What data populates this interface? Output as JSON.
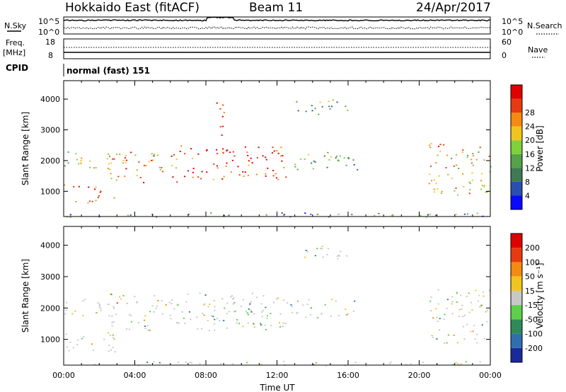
{
  "header": {
    "radar": "Hokkaido East (fitACF)",
    "beam": "Beam 11",
    "date": "24/Apr/2017"
  },
  "aux_panels": {
    "nsky_label": "N.Sky",
    "nsky_ticks": [
      "10^5",
      "10^0"
    ],
    "nsearch_label": "N.Search",
    "freq_label_line1": "Freq.",
    "freq_label_line2": "[MHz]",
    "freq_ticks": [
      "18",
      "8"
    ],
    "nave_label": "Nave",
    "nave_ticks": [
      "60",
      "0"
    ],
    "cpid_label": "CPID",
    "cpid_value": "normal (fast) 151"
  },
  "chart_data": [
    {
      "type": "heatmap",
      "panel": "power",
      "xlabel": "Time UT",
      "ylabel": "Slant Range [km]",
      "x_ticks": [
        "00:00",
        "04:00",
        "08:00",
        "12:00",
        "16:00",
        "20:00",
        "00:00"
      ],
      "xlim_hours": [
        0,
        24
      ],
      "ylim_km": [
        180,
        4600
      ],
      "y_ticks": [
        1000,
        2000,
        3000,
        4000
      ],
      "colorbar_label": "Power [dB]",
      "colorbar_ticks": [
        4,
        8,
        12,
        16,
        20,
        24,
        28
      ],
      "colorbar_colors": [
        "#0a0aff",
        "#2a4fb0",
        "#3f7a55",
        "#55a24a",
        "#7fd03a",
        "#f2c41e",
        "#f58a10",
        "#e83a10",
        "#e00000"
      ],
      "echo_regions": [
        {
          "t0": 0.0,
          "t1": 2.5,
          "r0": 950,
          "r1": 1250,
          "intensity": 0.85
        },
        {
          "t0": 0.5,
          "t1": 3.0,
          "r0": 600,
          "r1": 900,
          "intensity": 0.65
        },
        {
          "t0": 0.0,
          "t1": 2.8,
          "r0": 1700,
          "r1": 2300,
          "intensity": 0.55
        },
        {
          "t0": 2.5,
          "t1": 6.5,
          "r0": 1300,
          "r1": 2300,
          "intensity": 0.7
        },
        {
          "t0": 6.5,
          "t1": 12.5,
          "r0": 1400,
          "r1": 2500,
          "intensity": 0.9
        },
        {
          "t0": 8.5,
          "t1": 9.0,
          "r0": 2200,
          "r1": 4200,
          "intensity": 0.85
        },
        {
          "t0": 12.5,
          "t1": 16.5,
          "r0": 1700,
          "r1": 2300,
          "intensity": 0.45
        },
        {
          "t0": 13.0,
          "t1": 16.0,
          "r0": 3500,
          "r1": 4000,
          "intensity": 0.35
        },
        {
          "t0": 20.5,
          "t1": 24.0,
          "r0": 900,
          "r1": 2600,
          "intensity": 0.65
        },
        {
          "t0": 0.0,
          "t1": 24.0,
          "r0": 180,
          "r1": 320,
          "intensity": 0.35
        }
      ]
    },
    {
      "type": "heatmap",
      "panel": "velocity",
      "xlabel": "Time UT",
      "ylabel": "Slant Range [km]",
      "x_ticks": [
        "00:00",
        "04:00",
        "08:00",
        "12:00",
        "16:00",
        "20:00",
        "00:00"
      ],
      "xlim_hours": [
        0,
        24
      ],
      "ylim_km": [
        180,
        4600
      ],
      "y_ticks": [
        1000,
        2000,
        3000,
        4000
      ],
      "colorbar_label": "Velocity [m s⁻¹]",
      "colorbar_ticks": [
        200,
        100,
        50,
        15,
        -15,
        -50,
        -100,
        -200
      ],
      "colorbar_colors": [
        "#1a2a9a",
        "#2f6fb0",
        "#2e8b57",
        "#5cd04a",
        "#c8c8c8",
        "#f2c41e",
        "#f58a10",
        "#e83a10",
        "#e00000"
      ],
      "echo_regions": [
        {
          "t0": 0.0,
          "t1": 3.0,
          "r0": 600,
          "r1": 1250,
          "intensity": 0.5
        },
        {
          "t0": 0.0,
          "t1": 2.8,
          "r0": 1700,
          "r1": 2300,
          "intensity": 0.5
        },
        {
          "t0": 2.5,
          "t1": 12.5,
          "r0": 1300,
          "r1": 2500,
          "intensity": 0.5
        },
        {
          "t0": 9.5,
          "t1": 10.5,
          "r0": 1400,
          "r1": 2000,
          "intensity": 0.5
        },
        {
          "t0": 12.5,
          "t1": 16.5,
          "r0": 1700,
          "r1": 2300,
          "intensity": 0.5
        },
        {
          "t0": 13.0,
          "t1": 16.0,
          "r0": 3500,
          "r1": 4000,
          "intensity": 0.5
        },
        {
          "t0": 20.5,
          "t1": 24.0,
          "r0": 900,
          "r1": 2600,
          "intensity": 0.5
        },
        {
          "t0": 0.0,
          "t1": 24.0,
          "r0": 180,
          "r1": 320,
          "intensity": 0.5
        }
      ]
    }
  ]
}
